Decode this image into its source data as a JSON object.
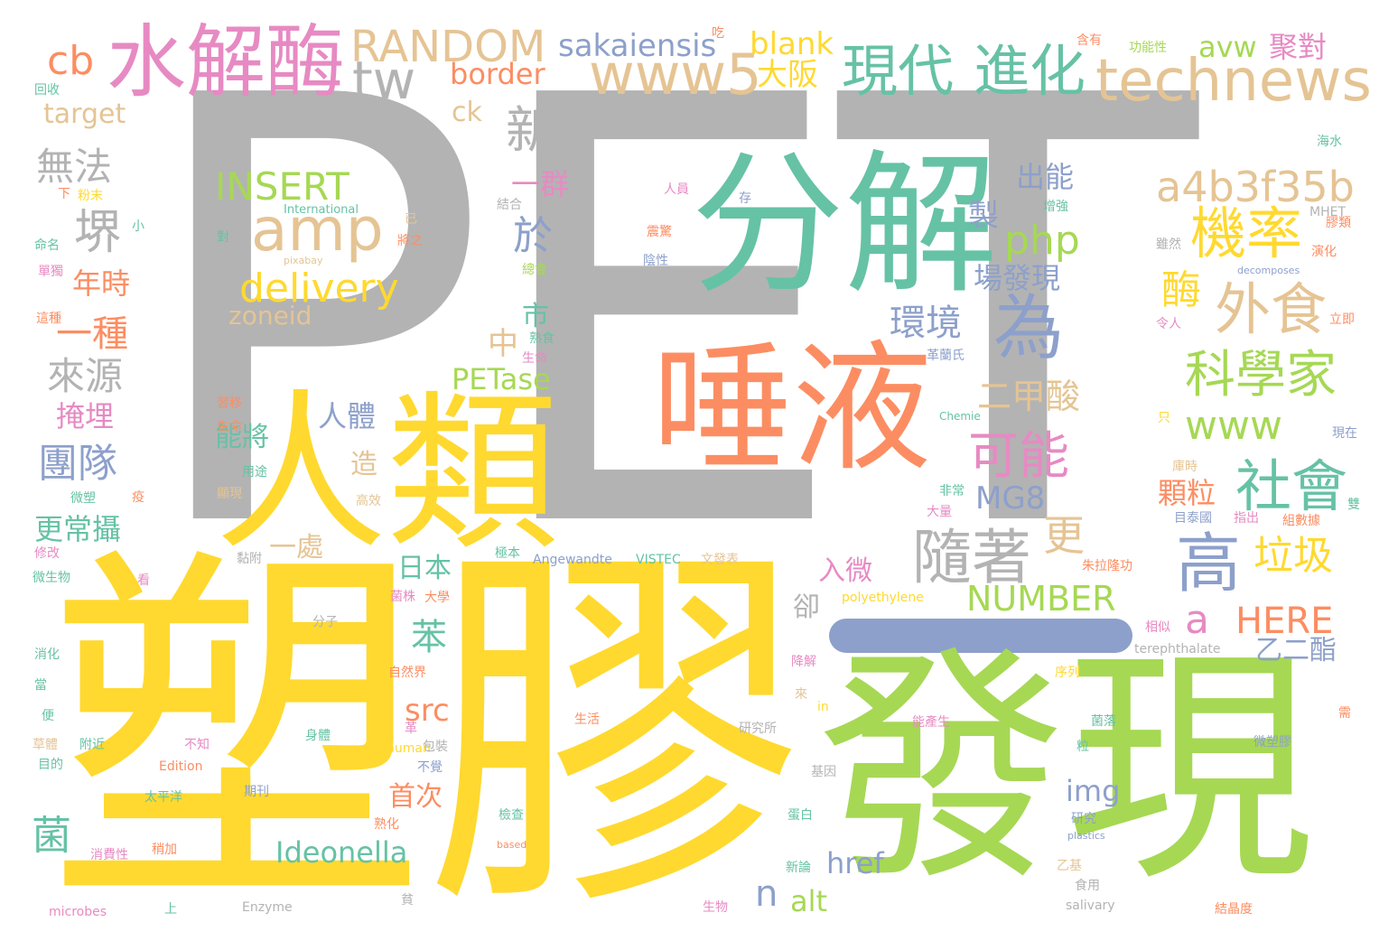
{
  "palette": {
    "gray": "#b3b3b3",
    "yellow": "#ffd92f",
    "green": "#a6d854",
    "teal": "#66c2a5",
    "orange": "#fc8d62",
    "blue": "#8da0cb",
    "pink": "#e78ac3",
    "tan": "#e5c494"
  },
  "words": [
    {
      "text": "PET",
      "color": "gray"
    },
    {
      "text": "塑膠",
      "color": "yellow"
    },
    {
      "text": "發現",
      "color": "green"
    },
    {
      "text": "人類",
      "color": "yellow"
    },
    {
      "text": "分解",
      "color": "teal"
    },
    {
      "text": "唾液",
      "color": "orange"
    },
    {
      "text": "水解酶",
      "color": "pink"
    },
    {
      "text": "現代",
      "color": "teal"
    },
    {
      "text": "進化",
      "color": "teal"
    },
    {
      "text": "technews",
      "color": "tan"
    },
    {
      "text": "www5",
      "color": "tan"
    },
    {
      "text": "RANDOM",
      "color": "tan"
    },
    {
      "text": "amp",
      "color": "tan"
    },
    {
      "text": "tw",
      "color": "gray"
    },
    {
      "text": "cb",
      "color": "orange"
    },
    {
      "text": "sakaiensis",
      "color": "blue"
    },
    {
      "text": "blank",
      "color": "yellow"
    },
    {
      "text": "border",
      "color": "orange"
    },
    {
      "text": "大阪",
      "color": "yellow"
    },
    {
      "text": "avw",
      "color": "green"
    },
    {
      "text": "聚對",
      "color": "pink"
    },
    {
      "text": "機率",
      "color": "yellow"
    },
    {
      "text": "a4b3f35b",
      "color": "tan"
    },
    {
      "text": "外食",
      "color": "tan"
    },
    {
      "text": "科學家",
      "color": "green"
    },
    {
      "text": "為",
      "color": "blue"
    },
    {
      "text": "可能",
      "color": "pink"
    },
    {
      "text": "社會",
      "color": "teal"
    },
    {
      "text": "www",
      "color": "green"
    },
    {
      "text": "高",
      "color": "blue"
    },
    {
      "text": "隨著",
      "color": "gray"
    },
    {
      "text": "MG8",
      "color": "blue"
    },
    {
      "text": "NUMBER",
      "color": "green"
    },
    {
      "text": "HERE",
      "color": "orange"
    },
    {
      "text": "a",
      "color": "pink"
    },
    {
      "text": "垃圾",
      "color": "yellow"
    },
    {
      "text": "INSERT",
      "color": "green"
    },
    {
      "text": "delivery",
      "color": "yellow"
    },
    {
      "text": "zoneid",
      "color": "tan"
    },
    {
      "text": "php",
      "color": "green"
    },
    {
      "text": "環境",
      "color": "blue"
    },
    {
      "text": "場發現",
      "color": "blue"
    },
    {
      "text": "二甲酸",
      "color": "tan"
    },
    {
      "text": "出能",
      "color": "blue"
    },
    {
      "text": "製",
      "color": "blue"
    },
    {
      "text": "新",
      "color": "gray"
    },
    {
      "text": "無法",
      "color": "gray"
    },
    {
      "text": "堺",
      "color": "gray"
    },
    {
      "text": "一種",
      "color": "orange"
    },
    {
      "text": "來源",
      "color": "gray"
    },
    {
      "text": "團隊",
      "color": "blue"
    },
    {
      "text": "年時",
      "color": "orange"
    },
    {
      "text": "掩埋",
      "color": "pink"
    },
    {
      "text": "更常攝",
      "color": "teal"
    },
    {
      "text": "target",
      "color": "tan"
    },
    {
      "text": "ck",
      "color": "tan"
    },
    {
      "text": "一群",
      "color": "pink"
    },
    {
      "text": "於",
      "color": "blue"
    },
    {
      "text": "中",
      "color": "tan"
    },
    {
      "text": "市",
      "color": "teal"
    },
    {
      "text": "PETase",
      "color": "green"
    },
    {
      "text": "人體",
      "color": "blue"
    },
    {
      "text": "能將",
      "color": "teal"
    },
    {
      "text": "造",
      "color": "tan"
    },
    {
      "text": "一處",
      "color": "tan"
    },
    {
      "text": "日本",
      "color": "teal"
    },
    {
      "text": "苯",
      "color": "teal"
    },
    {
      "text": "src",
      "color": "orange"
    },
    {
      "text": "首次",
      "color": "orange"
    },
    {
      "text": "img",
      "color": "blue"
    },
    {
      "text": "菌",
      "color": "teal"
    },
    {
      "text": "Ideonella",
      "color": "teal"
    },
    {
      "text": "href",
      "color": "blue"
    },
    {
      "text": "n",
      "color": "blue"
    },
    {
      "text": "alt",
      "color": "green"
    },
    {
      "text": "酶",
      "color": "yellow"
    },
    {
      "text": "顆粒",
      "color": "orange"
    },
    {
      "text": "入微",
      "color": "pink"
    },
    {
      "text": "卻",
      "color": "gray"
    },
    {
      "text": "乙二酯",
      "color": "blue"
    },
    {
      "text": "更",
      "color": "tan"
    },
    {
      "text": "回收",
      "color": "teal"
    },
    {
      "text": "含有",
      "color": "orange"
    },
    {
      "text": "功能性",
      "color": "green"
    },
    {
      "text": "海水",
      "color": "teal"
    },
    {
      "text": "吃",
      "color": "orange"
    },
    {
      "text": "下",
      "color": "orange"
    },
    {
      "text": "粉末",
      "color": "yellow"
    },
    {
      "text": "International",
      "color": "teal"
    },
    {
      "text": "人員",
      "color": "pink"
    },
    {
      "text": "存",
      "color": "blue"
    },
    {
      "text": "結合",
      "color": "gray"
    },
    {
      "text": "小",
      "color": "teal"
    },
    {
      "text": "已",
      "color": "tan"
    },
    {
      "text": "將之",
      "color": "orange"
    },
    {
      "text": "命名",
      "color": "teal"
    },
    {
      "text": "對",
      "color": "teal"
    },
    {
      "text": "pixabay",
      "color": "tan"
    },
    {
      "text": "震驚",
      "color": "orange"
    },
    {
      "text": "陰性",
      "color": "blue"
    },
    {
      "text": "增強",
      "color": "teal"
    },
    {
      "text": "MHET",
      "color": "gray"
    },
    {
      "text": "膠類",
      "color": "orange"
    },
    {
      "text": "雖然",
      "color": "gray"
    },
    {
      "text": "演化",
      "color": "orange"
    },
    {
      "text": "decomposes",
      "color": "blue"
    },
    {
      "text": "立即",
      "color": "orange"
    },
    {
      "text": "令人",
      "color": "pink"
    },
    {
      "text": "熟食",
      "color": "teal"
    },
    {
      "text": "生命",
      "color": "pink"
    },
    {
      "text": "革蘭氏",
      "color": "blue"
    },
    {
      "text": "單獨",
      "color": "pink"
    },
    {
      "text": "這種",
      "color": "orange"
    },
    {
      "text": "總會",
      "color": "green"
    },
    {
      "text": "Chemie",
      "color": "teal"
    },
    {
      "text": "只",
      "color": "yellow"
    },
    {
      "text": "現在",
      "color": "blue"
    },
    {
      "text": "庫時",
      "color": "tan"
    },
    {
      "text": "習移",
      "color": "orange"
    },
    {
      "text": "生命",
      "color": "orange"
    },
    {
      "text": "用途",
      "color": "teal"
    },
    {
      "text": "高效",
      "color": "tan"
    },
    {
      "text": "顯現",
      "color": "tan"
    },
    {
      "text": "非常",
      "color": "teal"
    },
    {
      "text": "大量",
      "color": "pink"
    },
    {
      "text": "目泰國",
      "color": "blue"
    },
    {
      "text": "指出",
      "color": "pink"
    },
    {
      "text": "組數據",
      "color": "orange"
    },
    {
      "text": "微塑",
      "color": "teal"
    },
    {
      "text": "修改",
      "color": "pink"
    },
    {
      "text": "黏附",
      "color": "gray"
    },
    {
      "text": "微生物",
      "color": "teal"
    },
    {
      "text": "看",
      "color": "pink"
    },
    {
      "text": "極本",
      "color": "teal"
    },
    {
      "text": "Angewandte",
      "color": "blue"
    },
    {
      "text": "VISTEC",
      "color": "teal"
    },
    {
      "text": "文發表",
      "color": "tan"
    },
    {
      "text": "朱拉隆功",
      "color": "orange"
    },
    {
      "text": "菌株",
      "color": "pink"
    },
    {
      "text": "大學",
      "color": "orange"
    },
    {
      "text": "polyethylene",
      "color": "yellow"
    },
    {
      "text": "分子",
      "color": "gray"
    },
    {
      "text": "相似",
      "color": "pink"
    },
    {
      "text": "terephthalate",
      "color": "gray"
    },
    {
      "text": "消化",
      "color": "teal"
    },
    {
      "text": "自然界",
      "color": "orange"
    },
    {
      "text": "降解",
      "color": "pink"
    },
    {
      "text": "序列",
      "color": "yellow"
    },
    {
      "text": "當",
      "color": "teal"
    },
    {
      "text": "來",
      "color": "tan"
    },
    {
      "text": "in",
      "color": "yellow"
    },
    {
      "text": "便",
      "color": "teal"
    },
    {
      "text": "生活",
      "color": "orange"
    },
    {
      "text": "能產生",
      "color": "pink"
    },
    {
      "text": "菌落",
      "color": "teal"
    },
    {
      "text": "需",
      "color": "orange"
    },
    {
      "text": "附近",
      "color": "teal"
    },
    {
      "text": "不知",
      "color": "pink"
    },
    {
      "text": "研究所",
      "color": "gray"
    },
    {
      "text": "身體",
      "color": "teal"
    },
    {
      "text": "human",
      "color": "yellow"
    },
    {
      "text": "粒",
      "color": "teal"
    },
    {
      "text": "微塑膠",
      "color": "blue"
    },
    {
      "text": "目的",
      "color": "teal"
    },
    {
      "text": "Edition",
      "color": "orange"
    },
    {
      "text": "不覺",
      "color": "blue"
    },
    {
      "text": "基因",
      "color": "gray"
    },
    {
      "text": "太平洋",
      "color": "teal"
    },
    {
      "text": "期刊",
      "color": "blue"
    },
    {
      "text": "熟化",
      "color": "orange"
    },
    {
      "text": "蛋白",
      "color": "teal"
    },
    {
      "text": "研究",
      "color": "blue"
    },
    {
      "text": "plastics",
      "color": "blue"
    },
    {
      "text": "檢查",
      "color": "teal"
    },
    {
      "text": "消費性",
      "color": "pink"
    },
    {
      "text": "稍加",
      "color": "orange"
    },
    {
      "text": "based",
      "color": "orange"
    },
    {
      "text": "新論",
      "color": "teal"
    },
    {
      "text": "乙基",
      "color": "tan"
    },
    {
      "text": "食用",
      "color": "gray"
    },
    {
      "text": "microbes",
      "color": "pink"
    },
    {
      "text": "上",
      "color": "teal"
    },
    {
      "text": "Enzyme",
      "color": "gray"
    },
    {
      "text": "貧",
      "color": "gray"
    },
    {
      "text": "生物",
      "color": "pink"
    },
    {
      "text": "salivary",
      "color": "gray"
    },
    {
      "text": "結晶度",
      "color": "orange"
    },
    {
      "text": "草體",
      "color": "tan"
    },
    {
      "text": "包裝",
      "color": "gray"
    },
    {
      "text": "革",
      "color": "pink"
    },
    {
      "text": "疫",
      "color": "orange"
    },
    {
      "text": "雙",
      "color": "teal"
    }
  ]
}
